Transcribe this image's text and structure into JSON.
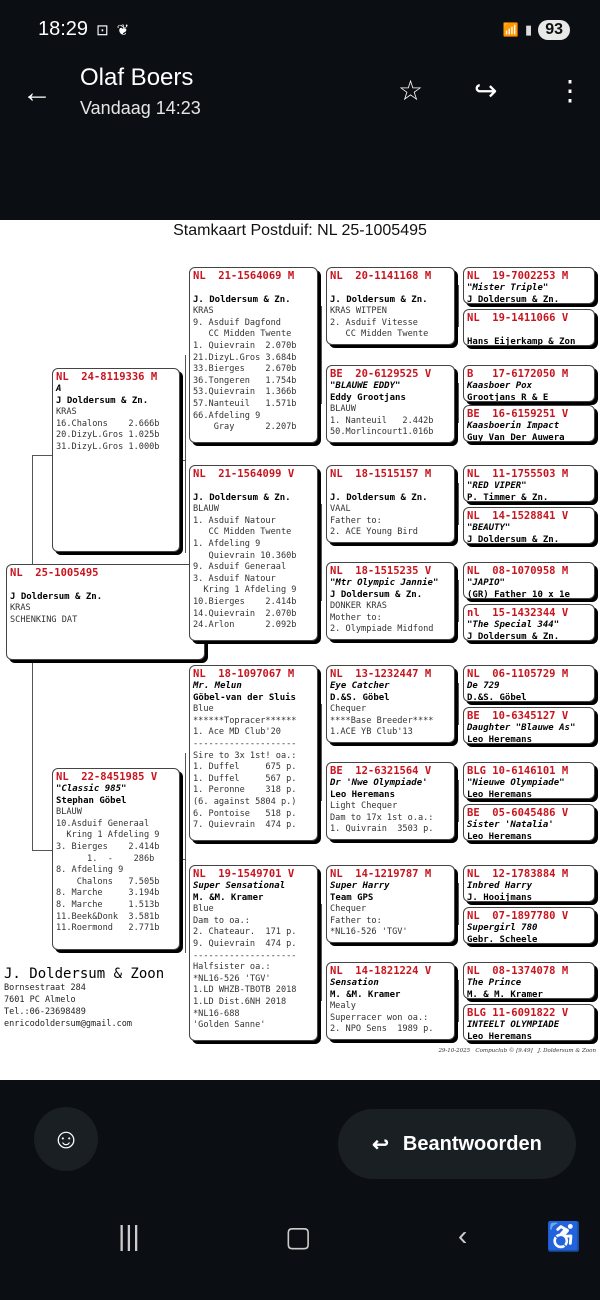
{
  "status_bar": {
    "time": "18:29",
    "battery": "93",
    "icons": [
      "screenshot-icon",
      "leaf-icon",
      "wifi-icon",
      "signal-icon"
    ]
  },
  "header": {
    "title": "Olaf Boers",
    "subtitle": "Vandaag 14:23",
    "icons": [
      "back-arrow-icon",
      "star-icon",
      "forward-icon",
      "more-vert-icon"
    ]
  },
  "document": {
    "title": "Stamkaart Postduif: NL  25-1005495",
    "subject": {
      "ring": "NL  25-1005495",
      "name": "",
      "owner": "J Doldersum & Zn.",
      "lines": [
        "KRAS",
        "SCHENKING DAT"
      ]
    },
    "parents": [
      {
        "ring": "NL  24-8119336 M",
        "name": "A",
        "owner": "J Doldersum & Zn.",
        "lines": [
          "KRAS",
          "16.Chalons    2.666b",
          "20.DizyL.Gros 1.025b",
          "31.DizyL.Gros 1.000b"
        ]
      },
      {
        "ring": "NL  22-8451985 V",
        "name": "\"Classic 985\"",
        "owner": "Stephan Göbel",
        "lines": [
          "BLAUW",
          "10.Asduif Generaal",
          "  Kring 1 Afdeling 9",
          "3. Bierges    2.414b",
          "      1.  -    286b",
          "8. Afdeling 9",
          "    Chalons   7.505b",
          "8. Marche     3.194b",
          "8. Marche     1.513b",
          "11.Beek&Donk  3.581b",
          "11.Roermond   2.771b"
        ]
      }
    ],
    "grandparents": [
      {
        "ring": "NL  21-1564069 M",
        "name": "",
        "owner": "J. Doldersum & Zn.",
        "lines": [
          "KRAS",
          "9. Asduif Dagfond",
          "   CC Midden Twente",
          "1. Quievrain  2.070b",
          "21.DizyL.Gros 3.684b",
          "33.Bierges    2.670b",
          "36.Tongeren   1.754b",
          "53.Quievrain  1.366b",
          "57.Nanteuil   1.571b",
          "66.Afdeling 9",
          "    Gray      2.207b"
        ]
      },
      {
        "ring": "NL  21-1564099 V",
        "name": "",
        "owner": "J. Doldersum & Zn.",
        "lines": [
          "BLAUW",
          "1. Asduif Natour",
          "   CC Midden Twente",
          "1. Afdeling 9",
          "   Quievrain 10.360b",
          "9. Asduif Generaal",
          "3. Asduif Natour",
          "  Kring 1 Afdeling 9",
          "10.Bierges    2.414b",
          "14.Quievrain  2.070b",
          "24.Arlon      2.092b"
        ]
      },
      {
        "ring": "NL  18-1097067 M",
        "name": "Mr. Melun",
        "owner": "Göbel-van der Sluis",
        "lines": [
          "Blue",
          "******Topracer******",
          "1. Ace MD Club'20",
          "--------------------",
          "Sire to 3x 1st! oa.:",
          "1. Duffel     675 p.",
          "1. Duffel     567 p.",
          "1. Peronne    318 p.",
          "(6. against 5804 p.)",
          "6. Pontoise   518 p.",
          "7. Quievrain  474 p."
        ]
      },
      {
        "ring": "NL  19-1549701 V",
        "name": "Super Sensational",
        "owner": "M. &M. Kramer",
        "lines": [
          "Blue",
          "Dam to oa.:",
          "2. Chateaur.  171 p.",
          "9. Quievrain  474 p.",
          "--------------------",
          "Halfsister oa.:",
          "*NL16-526 'TGV'",
          "1.LD WHZB-TBOTB 2018",
          "1.LD Dist.6NH 2018",
          "*NL16-688",
          "'Golden Sanne'"
        ]
      }
    ],
    "great_grandparents": [
      {
        "ring": "NL  20-1141168 M",
        "name": "",
        "owner": "J. Doldersum & Zn.",
        "lines": [
          "KRAS WITPEN",
          "2. Asduif Vitesse",
          "   CC Midden Twente"
        ]
      },
      {
        "ring": "BE  20-6129525 V",
        "name": "\"BLAUWE EDDY\"",
        "owner": "Eddy Grootjans",
        "lines": [
          "BLAUW",
          "1. Nanteuil   2.442b",
          "50.Morlincourt1.016b"
        ]
      },
      {
        "ring": "NL  18-1515157 M",
        "name": "",
        "owner": "J. Doldersum & Zn.",
        "lines": [
          "VAAL",
          "Father to:",
          "2. ACE Young Bird"
        ]
      },
      {
        "ring": "NL  18-1515235 V",
        "name": "\"Mtr Olympic Jannie\"",
        "owner": "J Doldersum & Zn.",
        "lines": [
          "DONKER KRAS",
          "Mother to:",
          "2. Olympiade Midfond"
        ]
      },
      {
        "ring": "NL  13-1232447 M",
        "name": "Eye Catcher",
        "owner": "D.&S. Göbel",
        "lines": [
          "Chequer",
          "****Base Breeder****",
          "1.ACE YB Club'13"
        ]
      },
      {
        "ring": "BE  12-6321564 V",
        "name": "Dr 'Nwe Olympiade'",
        "owner": "Leo Heremans",
        "lines": [
          "Light Chequer",
          "Dam to 17x 1st o.a.:",
          "1. Quivrain  3503 p."
        ]
      },
      {
        "ring": "NL  14-1219787 M",
        "name": "Super Harry",
        "owner": "Team GPS",
        "lines": [
          "Chequer",
          "Father to:",
          "*NL16-526 'TGV'"
        ]
      },
      {
        "ring": "NL  14-1821224 V",
        "name": "Sensation",
        "owner": "M. &M. Kramer",
        "lines": [
          "Mealy",
          "Superracer won oa.:",
          "2. NPO Sens  1989 p."
        ]
      }
    ],
    "great_great_grandparents": [
      {
        "ring": "NL  19-7002253 M",
        "name": "\"Mister Triple\"",
        "owner": "J Doldersum & Zn."
      },
      {
        "ring": "NL  19-1411066 V",
        "name": "",
        "owner": "Hans Eijerkamp & Zon"
      },
      {
        "ring": "B   17-6172050 M",
        "name": "Kaasboer Pox",
        "owner": "Grootjans R & E"
      },
      {
        "ring": "BE  16-6159251 V",
        "name": "Kaasboerin Impact",
        "owner": "Guy Van Der Auwera"
      },
      {
        "ring": "NL  11-1755503 M",
        "name": "\"RED VIPER\"",
        "owner": "P. Timmer & Zn."
      },
      {
        "ring": "NL  14-1528841 V",
        "name": "\"BEAUTY\"",
        "owner": "J Doldersum & Zn."
      },
      {
        "ring": "NL  08-1070958 M",
        "name": "\"JAPIO\"",
        "owner": "(GR) Father 10 x 1e"
      },
      {
        "ring": "nl  15-1432344 V",
        "name": "\"The Special 344\"",
        "owner": "J Doldersum & Zn."
      },
      {
        "ring": "NL  06-1105729 M",
        "name": "De 729",
        "owner": "D.&S. Göbel"
      },
      {
        "ring": "BE  10-6345127 V",
        "name": "Daughter \"Blauwe As\"",
        "owner": "Leo Heremans"
      },
      {
        "ring": "BLG 10-6146101 M",
        "name": "\"Nieuwe Olympiade\"",
        "owner": "Leo Heremans"
      },
      {
        "ring": "BE  05-6045486 V",
        "name": "Sister 'Natalia'",
        "owner": "Leo Heremans"
      },
      {
        "ring": "NL  12-1783884 M",
        "name": "Inbred Harry",
        "owner": "J. Hooijmans"
      },
      {
        "ring": "NL  07-1897780 V",
        "name": "Supergirl 780",
        "owner": "Gebr. Scheele"
      },
      {
        "ring": "NL  08-1374078 M",
        "name": "The Prince",
        "owner": "M. & M. Kramer"
      },
      {
        "ring": "BLG 11-6091822 V",
        "name": "INTEELT OLYMPIADE",
        "owner": "Leo Heremans"
      }
    ],
    "breeder": {
      "name": "J. Doldersum & Zoon",
      "street": "Bornsestraat 284",
      "city": "7601 PC  Almelo",
      "phone": "Tel.:06-23698489",
      "email": "enricodoldersum@gmail.com"
    },
    "footer": "29-10-2025   Compuclub © [9.49]   J. Doldersum & Zoon",
    "colors": {
      "ring": "#c8141e"
    }
  },
  "bottom": {
    "reply_label": "Beantwoorden",
    "icons": [
      "add-emoji-icon",
      "reply-icon",
      "recents-icon",
      "home-icon",
      "back-icon",
      "accessibility-icon"
    ]
  }
}
